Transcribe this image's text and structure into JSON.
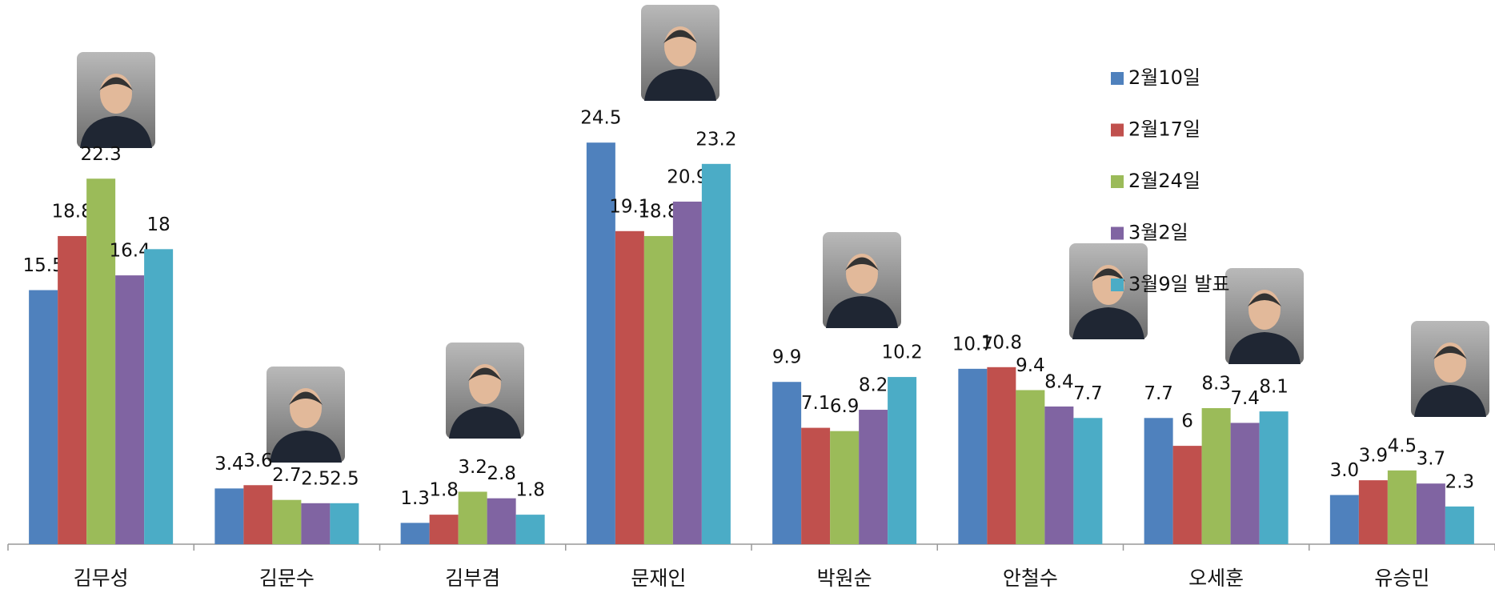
{
  "chart_data": {
    "type": "bar",
    "categories": [
      "김무성",
      "김문수",
      "김부겸",
      "문재인",
      "박원순",
      "안철수",
      "오세훈",
      "유승민"
    ],
    "series": [
      {
        "name": "2월10일",
        "color": "#4f81bd",
        "values": [
          15.5,
          3.4,
          1.3,
          24.5,
          9.9,
          10.7,
          7.7,
          3.0
        ],
        "value_labels": [
          "15.5",
          "3.4",
          "1.3",
          "24.5",
          "9.9",
          "10.7",
          "7.7",
          "3.0"
        ]
      },
      {
        "name": "2월17일",
        "color": "#c0504d",
        "values": [
          18.8,
          3.6,
          1.8,
          19.1,
          7.1,
          10.8,
          6,
          3.9
        ]
      },
      {
        "name": "2월24일",
        "color": "#9bbb59",
        "values": [
          22.3,
          2.7,
          3.2,
          18.8,
          6.9,
          9.4,
          8.3,
          4.5
        ]
      },
      {
        "name": "3월2일",
        "color": "#8064a2",
        "values": [
          16.4,
          2.5,
          2.8,
          20.9,
          8.2,
          8.4,
          7.4,
          3.7
        ]
      },
      {
        "name": "3월9일 발표",
        "color": "#4bacc6",
        "values": [
          18,
          2.5,
          1.8,
          23.2,
          10.2,
          7.7,
          8.1,
          2.3
        ]
      }
    ],
    "ylim": [
      0,
      33.2
    ],
    "legend": "upper right"
  }
}
